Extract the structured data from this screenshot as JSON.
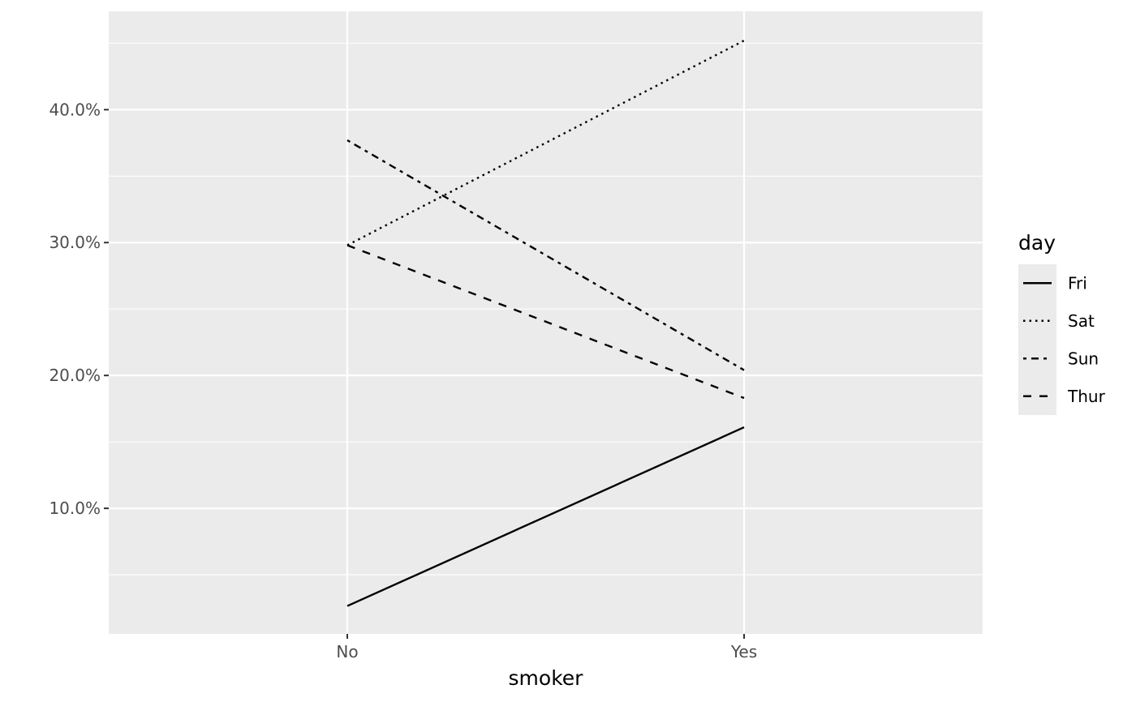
{
  "chart_data": {
    "type": "line",
    "title": "",
    "xlabel": "smoker",
    "ylabel": "",
    "categories": [
      "No",
      "Yes"
    ],
    "y_ticks": [
      0.1,
      0.2,
      0.3,
      0.4
    ],
    "y_tick_labels": [
      "10.0%",
      "20.0%",
      "30.0%",
      "40.0%"
    ],
    "ylim": [
      0.0055,
      0.474
    ],
    "grid": true,
    "legend": {
      "title": "day",
      "position": "right"
    },
    "series": [
      {
        "name": "Fri",
        "linetype": "solid",
        "values": [
          0.0265,
          0.161
        ]
      },
      {
        "name": "Sat",
        "linetype": "dotted",
        "values": [
          0.298,
          0.452
        ]
      },
      {
        "name": "Sun",
        "linetype": "dotdash",
        "values": [
          0.377,
          0.204
        ]
      },
      {
        "name": "Thur",
        "linetype": "dashed",
        "values": [
          0.298,
          0.183
        ]
      }
    ],
    "colors": {
      "panel": "#ebebeb",
      "grid": "#ffffff",
      "line": "#000000",
      "tick": "#4d4d4d"
    }
  }
}
